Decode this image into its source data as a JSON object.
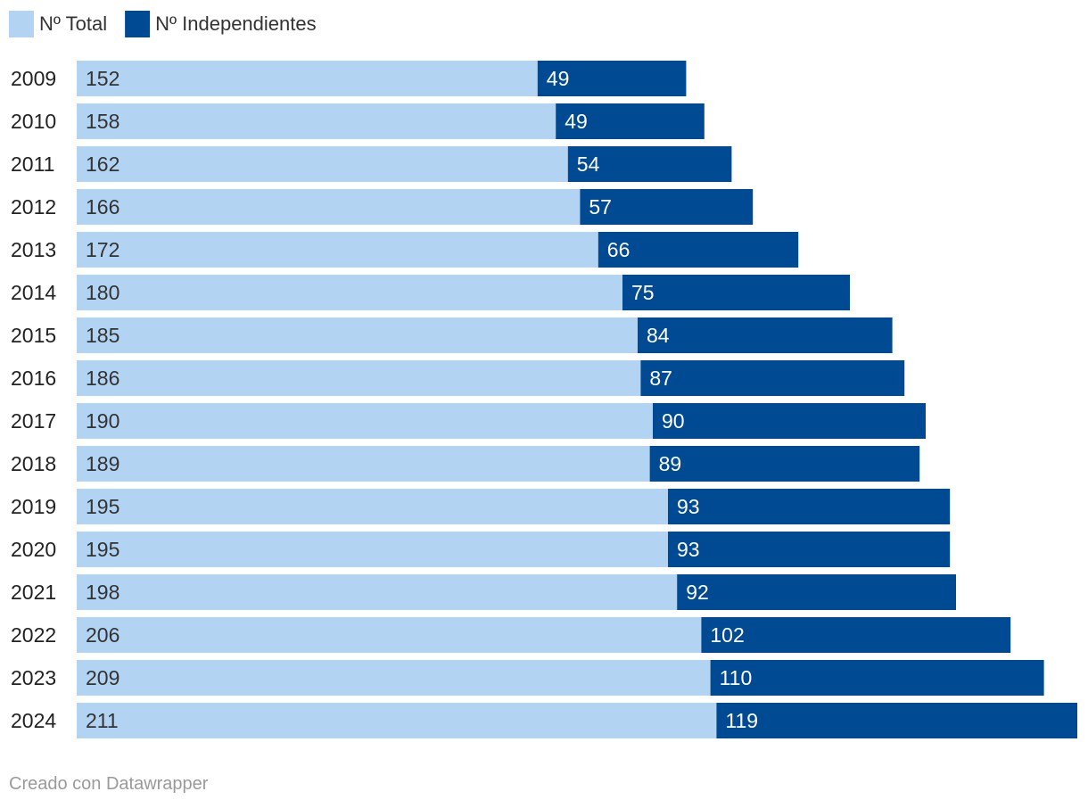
{
  "colors": {
    "total": "#b3d3f2",
    "independientes": "#004a93"
  },
  "footer": {
    "text": "Creado con Datawrapper"
  },
  "chart_data": {
    "type": "bar",
    "orientation": "horizontal",
    "stacked": true,
    "title": "",
    "xlabel": "",
    "ylabel": "",
    "legend_position": "top-left",
    "grid": false,
    "categories": [
      "2009",
      "2010",
      "2011",
      "2012",
      "2013",
      "2014",
      "2015",
      "2016",
      "2017",
      "2018",
      "2019",
      "2020",
      "2021",
      "2022",
      "2023",
      "2024"
    ],
    "series": [
      {
        "name": "Nº Total",
        "values": [
          152,
          158,
          162,
          166,
          172,
          180,
          185,
          186,
          190,
          189,
          195,
          195,
          198,
          206,
          209,
          211
        ]
      },
      {
        "name": "Nº Independientes",
        "values": [
          49,
          49,
          54,
          57,
          66,
          75,
          84,
          87,
          90,
          89,
          93,
          93,
          92,
          102,
          110,
          119
        ]
      }
    ],
    "xlim": [
      0,
      330
    ]
  }
}
